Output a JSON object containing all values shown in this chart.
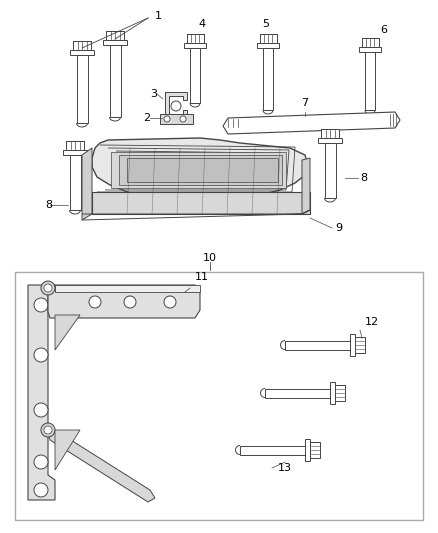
{
  "background_color": "#ffffff",
  "fig_width": 4.38,
  "fig_height": 5.33,
  "dpi": 100,
  "line_color": "#444444",
  "light_gray": "#cccccc",
  "med_gray": "#999999",
  "dark_gray": "#666666",
  "box_border": "#999999"
}
